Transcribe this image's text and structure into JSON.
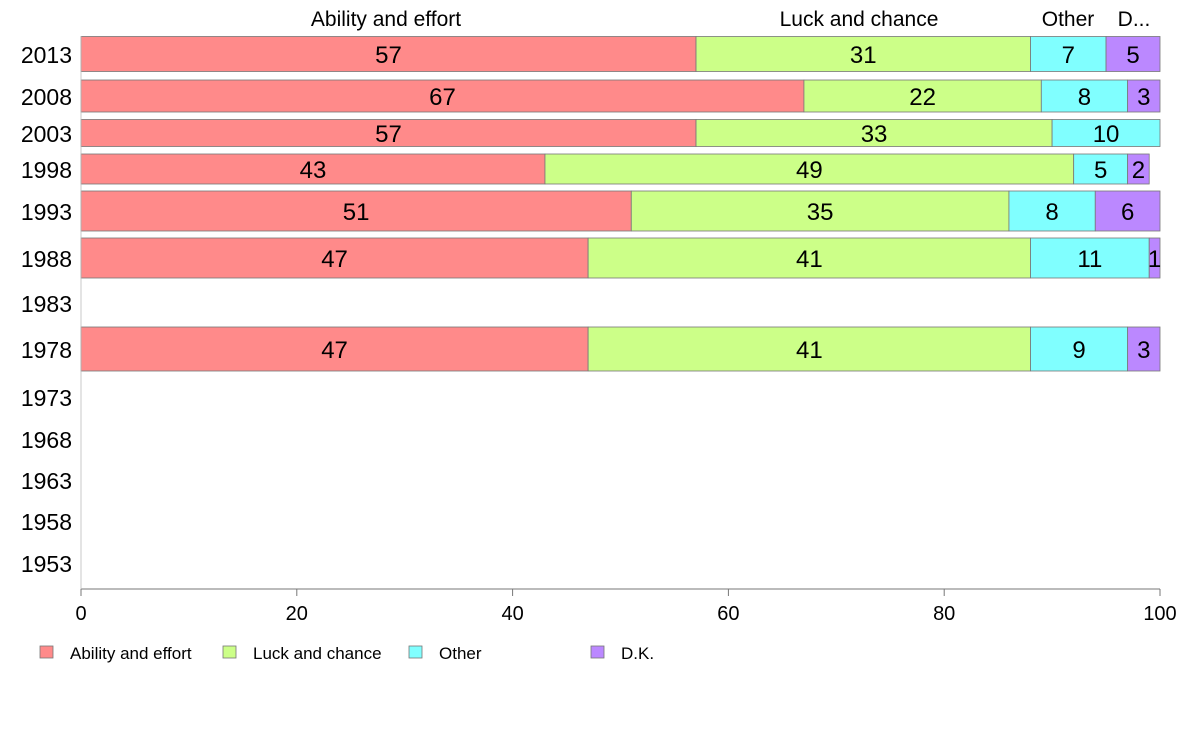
{
  "chart_data": {
    "type": "bar",
    "orientation": "horizontal",
    "stacked": true,
    "categories": [
      "2013",
      "2008",
      "2003",
      "1998",
      "1993",
      "1988",
      "1983",
      "1978",
      "1973",
      "1968",
      "1963",
      "1958",
      "1953"
    ],
    "series": [
      {
        "name": "Ability and effort",
        "color": "#ff8a8a",
        "values": [
          57,
          67,
          57,
          43,
          51,
          47,
          null,
          47,
          null,
          null,
          null,
          null,
          null
        ]
      },
      {
        "name": "Luck and chance",
        "color": "#ccff88",
        "values": [
          31,
          22,
          33,
          49,
          35,
          41,
          null,
          41,
          null,
          null,
          null,
          null,
          null
        ]
      },
      {
        "name": "Other",
        "color": "#80ffff",
        "values": [
          7,
          8,
          10,
          5,
          8,
          11,
          null,
          9,
          null,
          null,
          null,
          null,
          null
        ]
      },
      {
        "name": "D.K.",
        "color": "#bb88ff",
        "values": [
          5,
          3,
          0,
          2,
          6,
          1,
          null,
          3,
          null,
          null,
          null,
          null,
          null
        ]
      }
    ],
    "top_labels": [
      "Ability and effort",
      "Luck and chance",
      "Other",
      "D..."
    ],
    "xlim": [
      0,
      100
    ],
    "xticks": [
      "0",
      "20",
      "40",
      "60",
      "80",
      "100"
    ],
    "grid": false,
    "legend_position": "bottom"
  }
}
